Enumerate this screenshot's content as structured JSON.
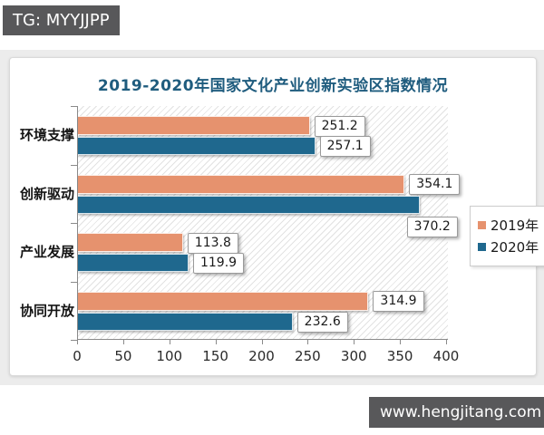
{
  "watermarks": {
    "top": "TG: MYYJJPP",
    "bottom": "www.hengjitang.com"
  },
  "chart_data": {
    "type": "bar",
    "orientation": "horizontal",
    "title": "2019-2020年国家文化产业创新实验区指数情况",
    "title_color": "#1f5c7e",
    "categories": [
      "环境支撑",
      "创新驱动",
      "产业发展",
      "协同开放"
    ],
    "series": [
      {
        "name": "2019年",
        "color": "#e6926e",
        "values": [
          251.2,
          354.1,
          113.8,
          314.9
        ],
        "label_below": [
          false,
          false,
          false,
          false
        ]
      },
      {
        "name": "2020年",
        "color": "#1f688e",
        "values": [
          257.1,
          370.2,
          119.9,
          232.6
        ],
        "label_below": [
          false,
          true,
          false,
          false
        ]
      }
    ],
    "x_ticks": [
      0,
      50,
      100,
      150,
      200,
      250,
      300,
      350,
      400
    ],
    "xlim": [
      0,
      400
    ],
    "legend_position": "right",
    "plot_background": "diagonal-hatch"
  }
}
